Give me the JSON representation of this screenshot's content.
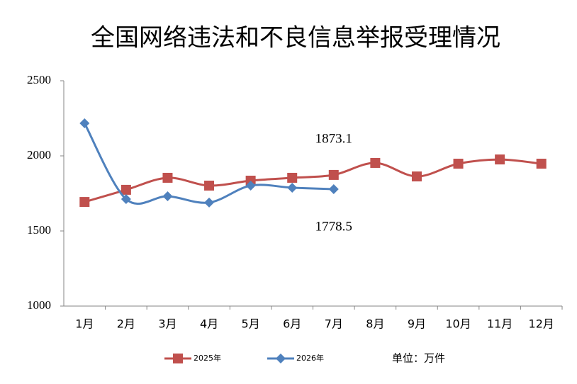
{
  "chart_data": {
    "type": "line",
    "title": "全国网络违法和不良信息举报受理情况",
    "unit_label": "单位：万件",
    "categories": [
      "1月",
      "2月",
      "3月",
      "4月",
      "5月",
      "6月",
      "7月",
      "8月",
      "9月",
      "10月",
      "11月",
      "12月"
    ],
    "series": [
      {
        "name": "2025年",
        "color": "#c0504d",
        "marker": "square",
        "values": [
          1693,
          1774,
          1854,
          1802,
          1835,
          1854,
          1873.1,
          1953,
          1863,
          1948,
          1976,
          1948
        ]
      },
      {
        "name": "2026年",
        "color": "#4f81bd",
        "marker": "diamond",
        "values": [
          2217,
          1712,
          1731,
          1689,
          1802,
          1788,
          1778.5,
          null,
          null,
          null,
          null,
          null
        ]
      }
    ],
    "data_labels": [
      {
        "series": 0,
        "index": 6,
        "position": "above"
      },
      {
        "series": 1,
        "index": 6,
        "position": "below"
      }
    ],
    "ylim": [
      1000,
      2500
    ],
    "yticks": [
      1000,
      1500,
      2000,
      2500
    ],
    "grid": false,
    "smooth": true,
    "legend": "bottom"
  }
}
